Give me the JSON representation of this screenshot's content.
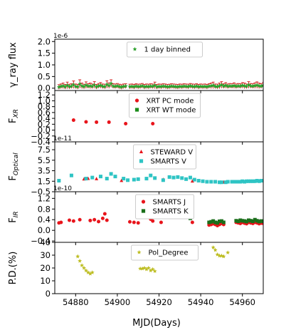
{
  "chart_data": [
    {
      "type": "scatter",
      "ylabel": "γ_ray flux",
      "multiplier": "1e-6",
      "ylim": [
        -0.1,
        2.1
      ],
      "yticks": [
        "0.0",
        "0.5",
        "1.0",
        "1.5",
        "2.0"
      ],
      "legend": {
        "loc": "upper center"
      },
      "series": [
        {
          "name": "1 day binned",
          "marker": "star",
          "color": "#2ca02c",
          "errcolor": "#d62728",
          "x": [
            54872,
            54873,
            54874,
            54875,
            54876,
            54877,
            54878,
            54879,
            54880,
            54881,
            54882,
            54883,
            54884,
            54885,
            54886,
            54887,
            54888,
            54889,
            54890,
            54891,
            54892,
            54893,
            54894,
            54895,
            54896,
            54897,
            54898,
            54899,
            54900,
            54901,
            54902,
            54903,
            54904,
            54906,
            54907,
            54908,
            54909,
            54910,
            54911,
            54912,
            54913,
            54914,
            54915,
            54916,
            54917,
            54918,
            54919,
            54920,
            54921,
            54922,
            54923,
            54924,
            54925,
            54926,
            54927,
            54928,
            54929,
            54930,
            54931,
            54932,
            54933,
            54934,
            54935,
            54936,
            54937,
            54938,
            54939,
            54940,
            54941,
            54942,
            54943,
            54944,
            54945,
            54946,
            54947,
            54948,
            54949,
            54950,
            54951,
            54952,
            54953,
            54954,
            54955,
            54956,
            54957,
            54958,
            54959,
            54960,
            54961,
            54962,
            54963,
            54964,
            54965,
            54966,
            54967,
            54968,
            54969,
            54970
          ],
          "y": [
            0.05,
            0.08,
            0.1,
            0.06,
            0.12,
            0.07,
            0.09,
            0.15,
            0.08,
            0.06,
            0.18,
            0.1,
            0.07,
            0.13,
            0.09,
            0.1,
            0.08,
            0.14,
            0.06,
            0.1,
            0.12,
            0.08,
            0.07,
            0.16,
            0.11,
            0.2,
            0.09,
            0.08,
            0.1,
            0.07,
            0.05,
            0.08,
            0.09,
            0.07,
            0.08,
            0.06,
            0.09,
            0.07,
            0.08,
            0.1,
            0.06,
            0.08,
            0.07,
            0.09,
            0.08,
            0.12,
            0.06,
            0.08,
            0.07,
            0.09,
            0.08,
            0.06,
            0.07,
            0.09,
            0.08,
            0.07,
            0.06,
            0.08,
            0.07,
            0.09,
            0.08,
            0.07,
            0.1,
            0.08,
            0.07,
            0.09,
            0.06,
            0.08,
            0.07,
            0.08,
            0.06,
            0.09,
            0.1,
            0.12,
            0.08,
            0.07,
            0.1,
            0.14,
            0.09,
            0.12,
            0.08,
            0.1,
            0.09,
            0.11,
            0.08,
            0.1,
            0.09,
            0.12,
            0.1,
            0.08,
            0.14,
            0.1,
            0.09,
            0.11,
            0.13,
            0.1,
            0.09,
            0.12
          ],
          "err": [
            0.1,
            0.1,
            0.12,
            0.1,
            0.14,
            0.1,
            0.1,
            0.16,
            0.1,
            0.1,
            0.18,
            0.12,
            0.1,
            0.14,
            0.1,
            0.12,
            0.1,
            0.14,
            0.1,
            0.1,
            0.12,
            0.1,
            0.1,
            0.16,
            0.12,
            0.16,
            0.1,
            0.1,
            0.1,
            0.1,
            0.1,
            0.1,
            0.1,
            0.1,
            0.1,
            0.1,
            0.1,
            0.1,
            0.1,
            0.1,
            0.1,
            0.1,
            0.1,
            0.1,
            0.1,
            0.14,
            0.1,
            0.1,
            0.1,
            0.1,
            0.1,
            0.1,
            0.1,
            0.1,
            0.1,
            0.1,
            0.1,
            0.1,
            0.1,
            0.1,
            0.1,
            0.1,
            0.1,
            0.1,
            0.1,
            0.1,
            0.1,
            0.1,
            0.1,
            0.1,
            0.1,
            0.1,
            0.12,
            0.14,
            0.1,
            0.1,
            0.12,
            0.14,
            0.1,
            0.12,
            0.1,
            0.1,
            0.1,
            0.12,
            0.1,
            0.1,
            0.1,
            0.12,
            0.12,
            0.1,
            0.14,
            0.1,
            0.1,
            0.12,
            0.14,
            0.12,
            0.1,
            0.12
          ]
        }
      ]
    },
    {
      "type": "scatter",
      "ylabel": "F",
      "ylabel_sub": "XR",
      "ylim": [
        -0.4,
        1.35
      ],
      "yticks": [
        "−0.4",
        "−0.2",
        "0.0",
        "0.2",
        "0.4",
        "0.6",
        "0.8",
        "1.0",
        "1.2"
      ],
      "legend": {
        "loc": "upper center"
      },
      "series": [
        {
          "name": "XRT PC mode",
          "marker": "circle",
          "color": "#e8141b",
          "x": [
            54879,
            54885,
            54890,
            54896,
            54904,
            54917
          ],
          "y": [
            0.34,
            0.28,
            0.27,
            0.27,
            0.22,
            0.22
          ]
        },
        {
          "name": "XRT WT mode",
          "marker": "square",
          "color": "#1a8c1a",
          "x": [],
          "y": []
        }
      ]
    },
    {
      "type": "scatter",
      "ylabel": "F",
      "ylabel_sub": "Optical",
      "multiplier": "1e-11",
      "ylim": [
        -0.5,
        9.0
      ],
      "yticks": [
        "−0.5",
        "1.5",
        "3.5",
        "5.5",
        "7.5"
      ],
      "legend": {
        "loc": "upper center"
      },
      "series": [
        {
          "name": "STEWARD V",
          "marker": "triangle",
          "color": "#e8141b",
          "x": [
            54884,
            54886,
            54890,
            54902,
            54922,
            54936,
            54951
          ],
          "y": [
            1.9,
            2.0,
            1.95,
            1.6,
            1.8,
            1.5,
            1.3
          ]
        },
        {
          "name": "SMARTS V",
          "marker": "square",
          "color": "#2ec4c4",
          "x": [
            54872,
            54878,
            54885,
            54888,
            54892,
            54895,
            54897,
            54899,
            54903,
            54905,
            54908,
            54910,
            54914,
            54916,
            54918,
            54922,
            54925,
            54927,
            54929,
            54931,
            54933,
            54935,
            54937,
            54939,
            54941,
            54943,
            54945,
            54947,
            54949,
            54950,
            54952,
            54953,
            54955,
            54956,
            54957,
            54958,
            54959,
            54960,
            54961,
            54962,
            54963,
            54964,
            54965,
            54966,
            54967,
            54968,
            54969,
            54970
          ],
          "y": [
            1.6,
            2.6,
            2.0,
            2.2,
            2.4,
            2.0,
            2.9,
            2.4,
            2.0,
            1.7,
            1.8,
            1.9,
            2.0,
            2.6,
            2.1,
            1.7,
            2.3,
            2.2,
            2.3,
            2.1,
            1.9,
            2.2,
            1.8,
            1.6,
            1.5,
            1.4,
            1.4,
            1.4,
            1.3,
            1.3,
            1.3,
            1.4,
            1.4,
            1.4,
            1.4,
            1.4,
            1.4,
            1.5,
            1.4,
            1.5,
            1.5,
            1.5,
            1.5,
            1.5,
            1.6,
            1.5,
            1.6,
            1.6
          ]
        }
      ]
    },
    {
      "type": "scatter",
      "ylabel": "F",
      "ylabel_sub": "IR",
      "multiplier": "1e-10",
      "ylim": [
        -0.45,
        1.45
      ],
      "yticks": [
        "−0.4",
        "0.0",
        "0.4",
        "0.8",
        "1.2"
      ],
      "legend": {
        "loc": "upper center"
      },
      "series": [
        {
          "name": "SMARTS J",
          "marker": "circle",
          "color": "#e8141b",
          "x": [
            54872,
            54873,
            54877,
            54879,
            54882,
            54887,
            54889,
            54891,
            54893,
            54894,
            54895,
            54906,
            54908,
            54910,
            54916,
            54917,
            54921,
            54935,
            54936,
            54944,
            54945,
            54946,
            54947,
            54948,
            54949,
            54950,
            54951,
            54957,
            54958,
            54959,
            54960,
            54961,
            54962,
            54963,
            54964,
            54965,
            54966,
            54967,
            54968,
            54969,
            54970
          ],
          "y": [
            0.28,
            0.3,
            0.38,
            0.35,
            0.4,
            0.37,
            0.4,
            0.33,
            0.45,
            0.62,
            0.38,
            0.32,
            0.3,
            0.28,
            0.42,
            0.35,
            0.3,
            0.48,
            0.3,
            0.2,
            0.22,
            0.25,
            0.22,
            0.18,
            0.22,
            0.26,
            0.22,
            0.3,
            0.28,
            0.26,
            0.3,
            0.27,
            0.25,
            0.3,
            0.28,
            0.26,
            0.3,
            0.28,
            0.25,
            0.27,
            0.26
          ]
        },
        {
          "name": "SMARTS K",
          "marker": "square",
          "color": "#1a6e1a",
          "x": [
            54935,
            54944,
            54945,
            54946,
            54947,
            54948,
            54949,
            54950,
            54951,
            54957,
            54958,
            54959,
            54960,
            54961,
            54962,
            54963,
            54964,
            54965,
            54966,
            54967,
            54968,
            54969,
            54970
          ],
          "y": [
            0.45,
            0.3,
            0.32,
            0.35,
            0.3,
            0.28,
            0.34,
            0.35,
            0.3,
            0.36,
            0.34,
            0.38,
            0.36,
            0.35,
            0.33,
            0.38,
            0.36,
            0.34,
            0.4,
            0.36,
            0.33,
            0.35,
            0.34
          ]
        }
      ]
    },
    {
      "type": "scatter",
      "ylabel": "P.D.(%)",
      "xlabel": "MJD(Days)",
      "ylim": [
        0,
        40
      ],
      "yticks": [
        "0",
        "10",
        "20",
        "30",
        "40"
      ],
      "xlim": [
        54870,
        54970
      ],
      "xticks": [
        "54880",
        "54900",
        "54920",
        "54940",
        "54960"
      ],
      "legend": {
        "loc": "upper center"
      },
      "series": [
        {
          "name": "Pol_Degree",
          "marker": "star",
          "color": "#bdbd22",
          "x": [
            54881,
            54882,
            54883,
            54884,
            54885,
            54886,
            54887,
            54888,
            54911,
            54912,
            54913,
            54914,
            54915,
            54916,
            54917,
            54918,
            54946,
            54947,
            54948,
            54949,
            54950,
            54951,
            54953
          ],
          "y": [
            29,
            25.5,
            22,
            20,
            18,
            16.5,
            15.5,
            16.5,
            19.5,
            19.5,
            20,
            19,
            20,
            18,
            19,
            17.5,
            36,
            34,
            30.5,
            29.5,
            29.5,
            29,
            32
          ]
        }
      ]
    }
  ]
}
